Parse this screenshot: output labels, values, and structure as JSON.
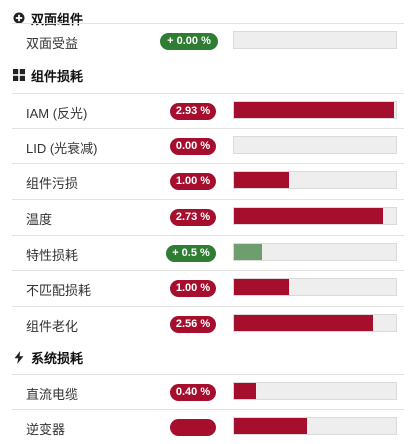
{
  "colors": {
    "loss": "#a50f2d",
    "gain_badge": "#2e7d32",
    "gain_bar": "#6e9e6e",
    "track": "#eeeeee"
  },
  "sections": [
    {
      "icon": "plus-circle-icon",
      "title": "双面组件",
      "items": [
        {
          "label": "双面受益",
          "value": "+ 0.00 %",
          "kind": "gain",
          "fill": 0.0
        }
      ]
    },
    {
      "icon": "grid-icon",
      "title": "组件损耗",
      "items": [
        {
          "label": "IAM (反光)",
          "value": "2.93 %",
          "kind": "loss",
          "fill": 0.99
        },
        {
          "label": "LID (光衰减)",
          "value": "0.00 %",
          "kind": "loss",
          "fill": 0.0
        },
        {
          "label": "组件污损",
          "value": "1.00 %",
          "kind": "loss",
          "fill": 0.34
        },
        {
          "label": "温度",
          "value": "2.73 %",
          "kind": "loss",
          "fill": 0.92
        },
        {
          "label": "特性损耗",
          "value": "+ 0.5 %",
          "kind": "gain",
          "fill": 0.17
        },
        {
          "label": "不匹配损耗",
          "value": "1.00 %",
          "kind": "loss",
          "fill": 0.34
        },
        {
          "label": "组件老化",
          "value": "2.56 %",
          "kind": "loss",
          "fill": 0.86
        }
      ]
    },
    {
      "icon": "lightning-icon",
      "title": "系统损耗",
      "items": [
        {
          "label": "直流电缆",
          "value": "0.40 %",
          "kind": "loss",
          "fill": 0.135
        },
        {
          "label": "逆变器",
          "value": "",
          "kind": "loss",
          "fill": 0.45
        }
      ]
    }
  ]
}
